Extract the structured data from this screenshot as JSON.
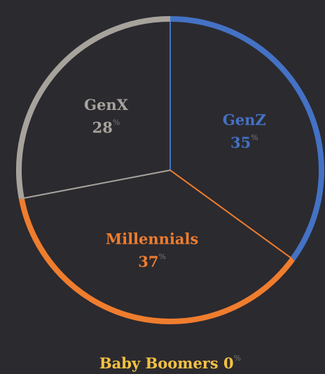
{
  "chart_data": {
    "type": "pie",
    "categories": [
      "GenZ",
      "Millennials",
      "GenX",
      "Baby Boomers"
    ],
    "values": [
      35,
      37,
      28,
      0
    ],
    "colors": [
      "#4472c4",
      "#ef7d2e",
      "#a7a39c",
      "#f5c242"
    ],
    "unit": "%"
  }
}
